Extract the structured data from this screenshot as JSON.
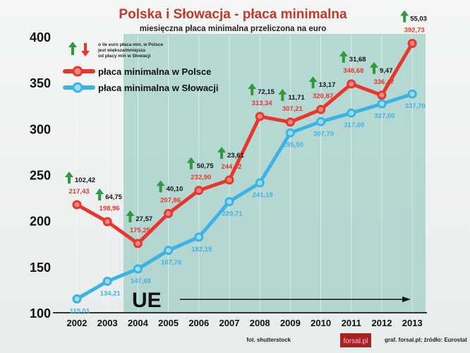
{
  "chart_data": {
    "type": "line",
    "title": "Polska i Słowacja - płaca minimalna",
    "subtitle": "miesięczna płaca minimalna przeliczona na euro",
    "categories": [
      "2002",
      "2003",
      "2004",
      "2005",
      "2006",
      "2007",
      "2008",
      "2009",
      "2010",
      "2011",
      "2012",
      "2013"
    ],
    "series": [
      {
        "name": "płaca minimalna w Polsce",
        "color": "#e8362c",
        "values": [
          217.43,
          198.96,
          175.25,
          207.86,
          232.9,
          244.32,
          313.34,
          307.21,
          320.87,
          348.68,
          336.47,
          392.73
        ],
        "labels": [
          "217,43",
          "198,96",
          "175,25",
          "207,86",
          "232,90",
          "244,32",
          "313,34",
          "307,21",
          "320,87",
          "348,68",
          "336,47",
          "392,73"
        ]
      },
      {
        "name": "płaca minimalna w Słowacji",
        "color": "#3bb4e5",
        "values": [
          115.01,
          134.21,
          147.68,
          167.76,
          182.15,
          220.71,
          241.19,
          295.5,
          307.7,
          317.0,
          327.0,
          337.7
        ],
        "labels": [
          "115,01",
          "134,21",
          "147,68",
          "167,76",
          "182,15",
          "220,71",
          "241,19",
          "295,50",
          "307,70",
          "317,00",
          "327,00",
          "337,70"
        ]
      }
    ],
    "differences": {
      "values": [
        102.42,
        64.75,
        27.57,
        40.1,
        50.75,
        23.61,
        72.15,
        11.71,
        13.17,
        31.68,
        9.47,
        55.03
      ],
      "labels": [
        "102,42",
        "64,75",
        "27,57",
        "40,10",
        "50,75",
        "23,61",
        "72,15",
        "11,71",
        "13,17",
        "31,68",
        "9,47",
        "55,03"
      ]
    },
    "ylim": [
      100,
      400
    ],
    "yticks": [
      "100",
      "150",
      "200",
      "250",
      "300",
      "350",
      "400"
    ],
    "legend_note": [
      "o ile euro płaca min. w Polsce",
      "jest większa/mniejsza",
      "od płacy min w Słowacji"
    ],
    "annotation": "UE",
    "legend_placement": "top-left"
  },
  "footer": {
    "photo": "fot. shutterstock",
    "logo": "forsal.pl",
    "source": "graf. forsal.pl;  źródło: Eurostat"
  },
  "colors": {
    "up": "#2e9a3c",
    "down": "#e8362c",
    "ue_band": "#6fb7ac"
  }
}
